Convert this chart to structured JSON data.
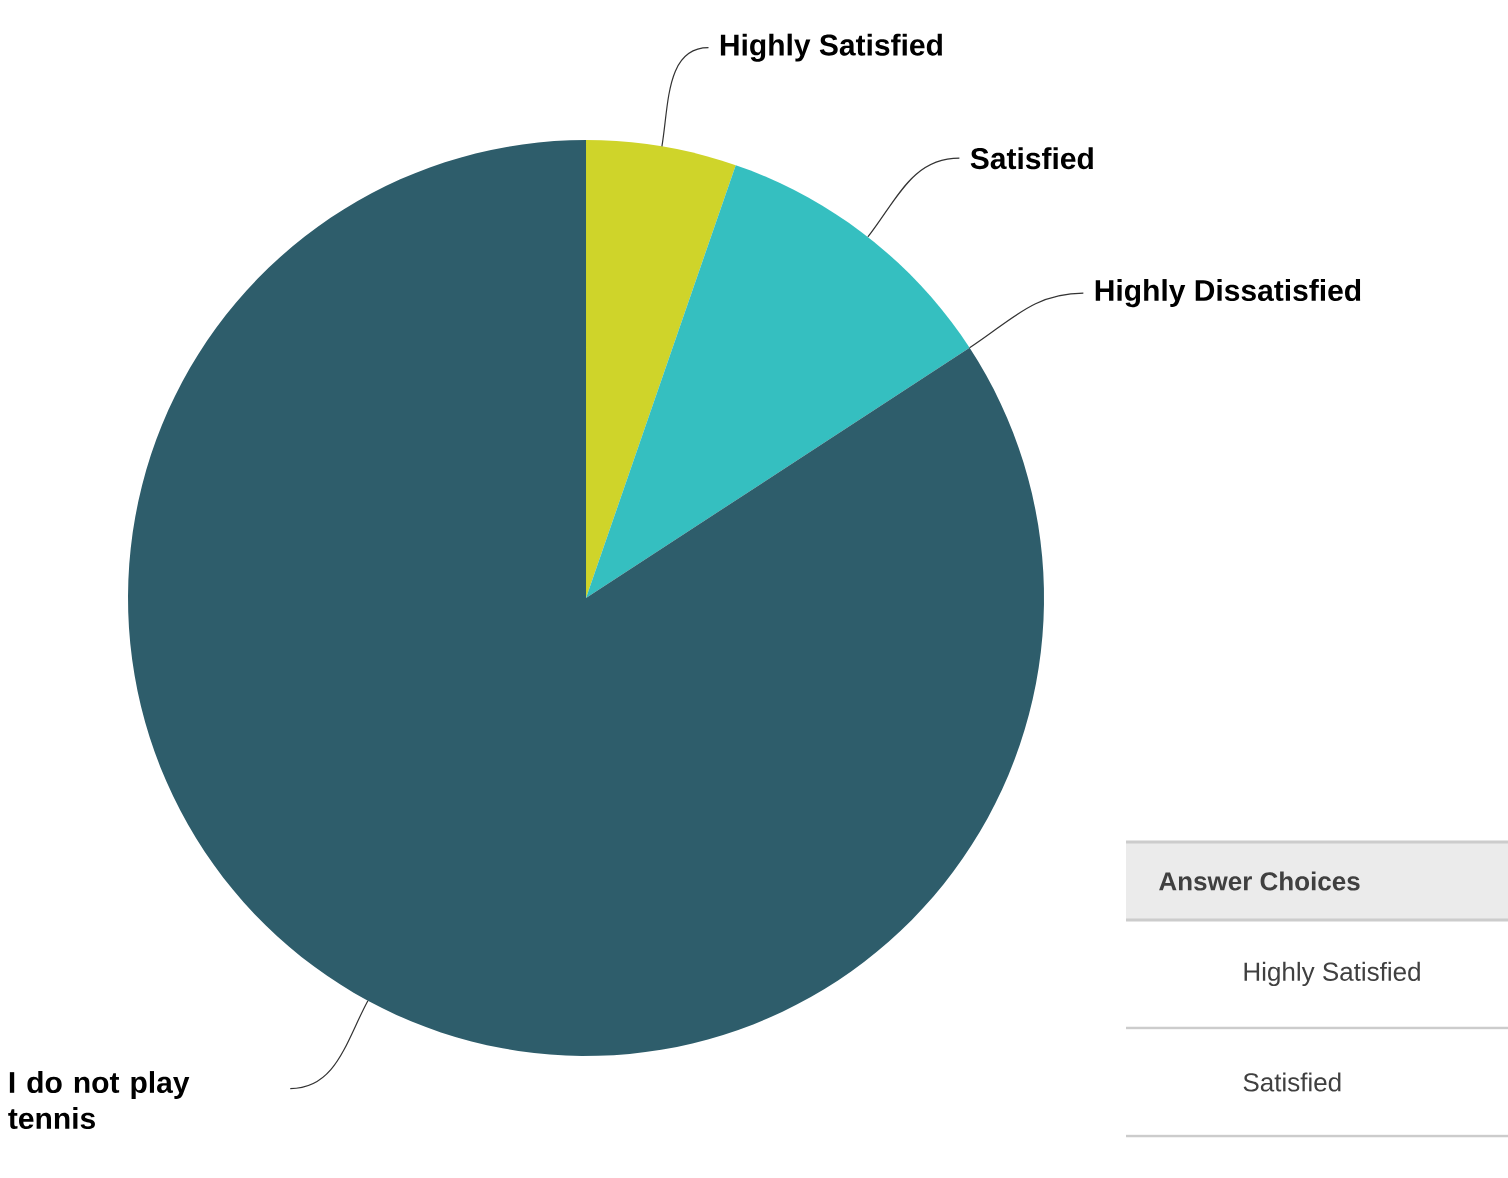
{
  "chart_data": {
    "type": "pie",
    "categories": [
      "Highly Satisfied",
      "Satisfied",
      "Highly Dissatisfied",
      "I do not play tennis"
    ],
    "values": [
      5.3,
      10.5,
      0,
      84.2
    ],
    "colors": [
      "#cfd42a",
      "#35bfc0",
      "#a0a0a0",
      "#2e5d6b"
    ],
    "annotations": [
      "Answer Choices",
      "Highly Satisfied",
      "Satisfied"
    ]
  }
}
